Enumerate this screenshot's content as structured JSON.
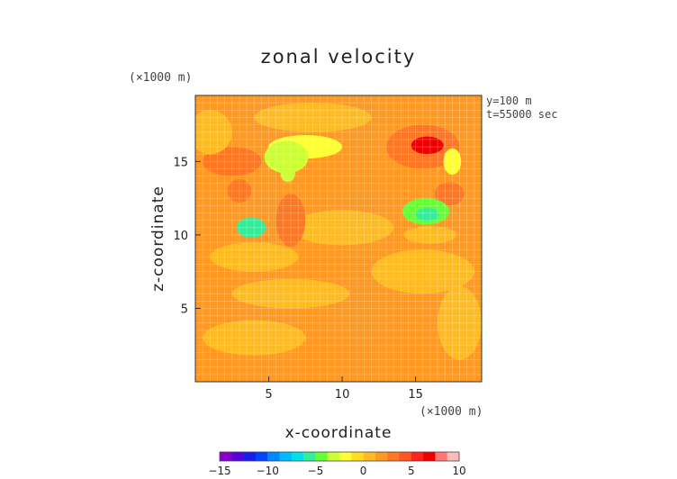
{
  "chart_data": {
    "type": "heatmap",
    "title": "zonal velocity",
    "xlabel": "x-coordinate",
    "ylabel": "z-coordinate",
    "x_unit": "(×1000 m)",
    "y_unit": "(×1000 m)",
    "annotations": [
      "y=100 m",
      "t=55000 sec"
    ],
    "xlim": [
      0,
      19.5
    ],
    "ylim": [
      0,
      19.5
    ],
    "x_ticks": [
      5,
      10,
      15
    ],
    "y_ticks": [
      5,
      10,
      15
    ],
    "grid": true,
    "colorbar": {
      "range": [
        -15,
        10
      ],
      "tick_values": [
        -15,
        -10,
        -5,
        0,
        5,
        10
      ],
      "tick_labels": [
        "−15",
        "−10",
        "−5",
        "0",
        "5",
        "10"
      ],
      "colors": [
        "#8800cc",
        "#5500dd",
        "#1a1aee",
        "#0044ff",
        "#0088ff",
        "#00bbff",
        "#00e0e8",
        "#33ee99",
        "#66ff33",
        "#ccff33",
        "#ffff33",
        "#ffdd22",
        "#ffbb22",
        "#ff9922",
        "#ff7722",
        "#ff5522",
        "#ff2222",
        "#ee0000",
        "#ff7777",
        "#ffbbbb"
      ]
    },
    "background_value": 1.5,
    "features": [
      {
        "kind": "blob",
        "x": 2.5,
        "y": 15.0,
        "rx": 2.0,
        "ry": 1.0,
        "value": 2.5
      },
      {
        "kind": "blob",
        "x": 3.0,
        "y": 13.0,
        "rx": 0.8,
        "ry": 0.8,
        "value": 3.5
      },
      {
        "kind": "blob",
        "x": 6.2,
        "y": 15.3,
        "rx": 1.5,
        "ry": 1.1,
        "value": -3.5
      },
      {
        "kind": "blob",
        "x": 6.3,
        "y": 14.2,
        "rx": 0.5,
        "ry": 0.6,
        "value": -3.5
      },
      {
        "kind": "blob",
        "x": 7.5,
        "y": 16.0,
        "rx": 2.5,
        "ry": 0.8,
        "value": -1.5
      },
      {
        "kind": "blob",
        "x": 3.8,
        "y": 10.5,
        "rx": 1.0,
        "ry": 0.7,
        "value": -5.5
      },
      {
        "kind": "blob",
        "x": 6.5,
        "y": 11.0,
        "rx": 1.0,
        "ry": 1.8,
        "value": 3.5
      },
      {
        "kind": "blob",
        "x": 8.3,
        "y": 13.2,
        "rx": 0.6,
        "ry": 0.6,
        "value": 2.0
      },
      {
        "kind": "blob",
        "x": 15.5,
        "y": 16.0,
        "rx": 2.5,
        "ry": 1.5,
        "value": 3.5
      },
      {
        "kind": "blob",
        "x": 15.8,
        "y": 16.1,
        "rx": 1.1,
        "ry": 0.6,
        "value": 6.5
      },
      {
        "kind": "blob",
        "x": 17.5,
        "y": 15.0,
        "rx": 0.6,
        "ry": 0.9,
        "value": -2.0
      },
      {
        "kind": "blob",
        "x": 15.7,
        "y": 11.6,
        "rx": 1.6,
        "ry": 0.9,
        "value": -4.0
      },
      {
        "kind": "blob",
        "x": 15.8,
        "y": 11.4,
        "rx": 0.8,
        "ry": 0.45,
        "value": -6.0
      },
      {
        "kind": "blob",
        "x": 17.3,
        "y": 12.8,
        "rx": 1.0,
        "ry": 0.8,
        "value": 2.5
      },
      {
        "kind": "blob",
        "x": 12.0,
        "y": 17.5,
        "rx": 1.5,
        "ry": 0.8,
        "value": 2.0
      },
      {
        "kind": "blob",
        "x": 16.0,
        "y": 10.0,
        "rx": 1.8,
        "ry": 0.6,
        "value": 0.5
      },
      {
        "kind": "blob",
        "x": 6.5,
        "y": 6.0,
        "rx": 4.0,
        "ry": 1.0,
        "value": 0.5
      },
      {
        "kind": "blob",
        "x": 4.0,
        "y": 8.5,
        "rx": 3.0,
        "ry": 1.0,
        "value": 0.5
      },
      {
        "kind": "blob",
        "x": 10.0,
        "y": 10.5,
        "rx": 3.5,
        "ry": 1.2,
        "value": 0.5
      },
      {
        "kind": "blob",
        "x": 15.5,
        "y": 7.5,
        "rx": 3.5,
        "ry": 1.5,
        "value": 0.5
      },
      {
        "kind": "blob",
        "x": 4.0,
        "y": 3.0,
        "rx": 3.5,
        "ry": 1.2,
        "value": 0.5
      },
      {
        "kind": "blob",
        "x": 18.0,
        "y": 4.0,
        "rx": 1.5,
        "ry": 2.5,
        "value": 0.5
      },
      {
        "kind": "blob",
        "x": 8.0,
        "y": 18.0,
        "rx": 4.0,
        "ry": 1.0,
        "value": 0.5
      },
      {
        "kind": "blob",
        "x": 1.0,
        "y": 17.0,
        "rx": 1.5,
        "ry": 1.5,
        "value": 0.5
      }
    ]
  }
}
